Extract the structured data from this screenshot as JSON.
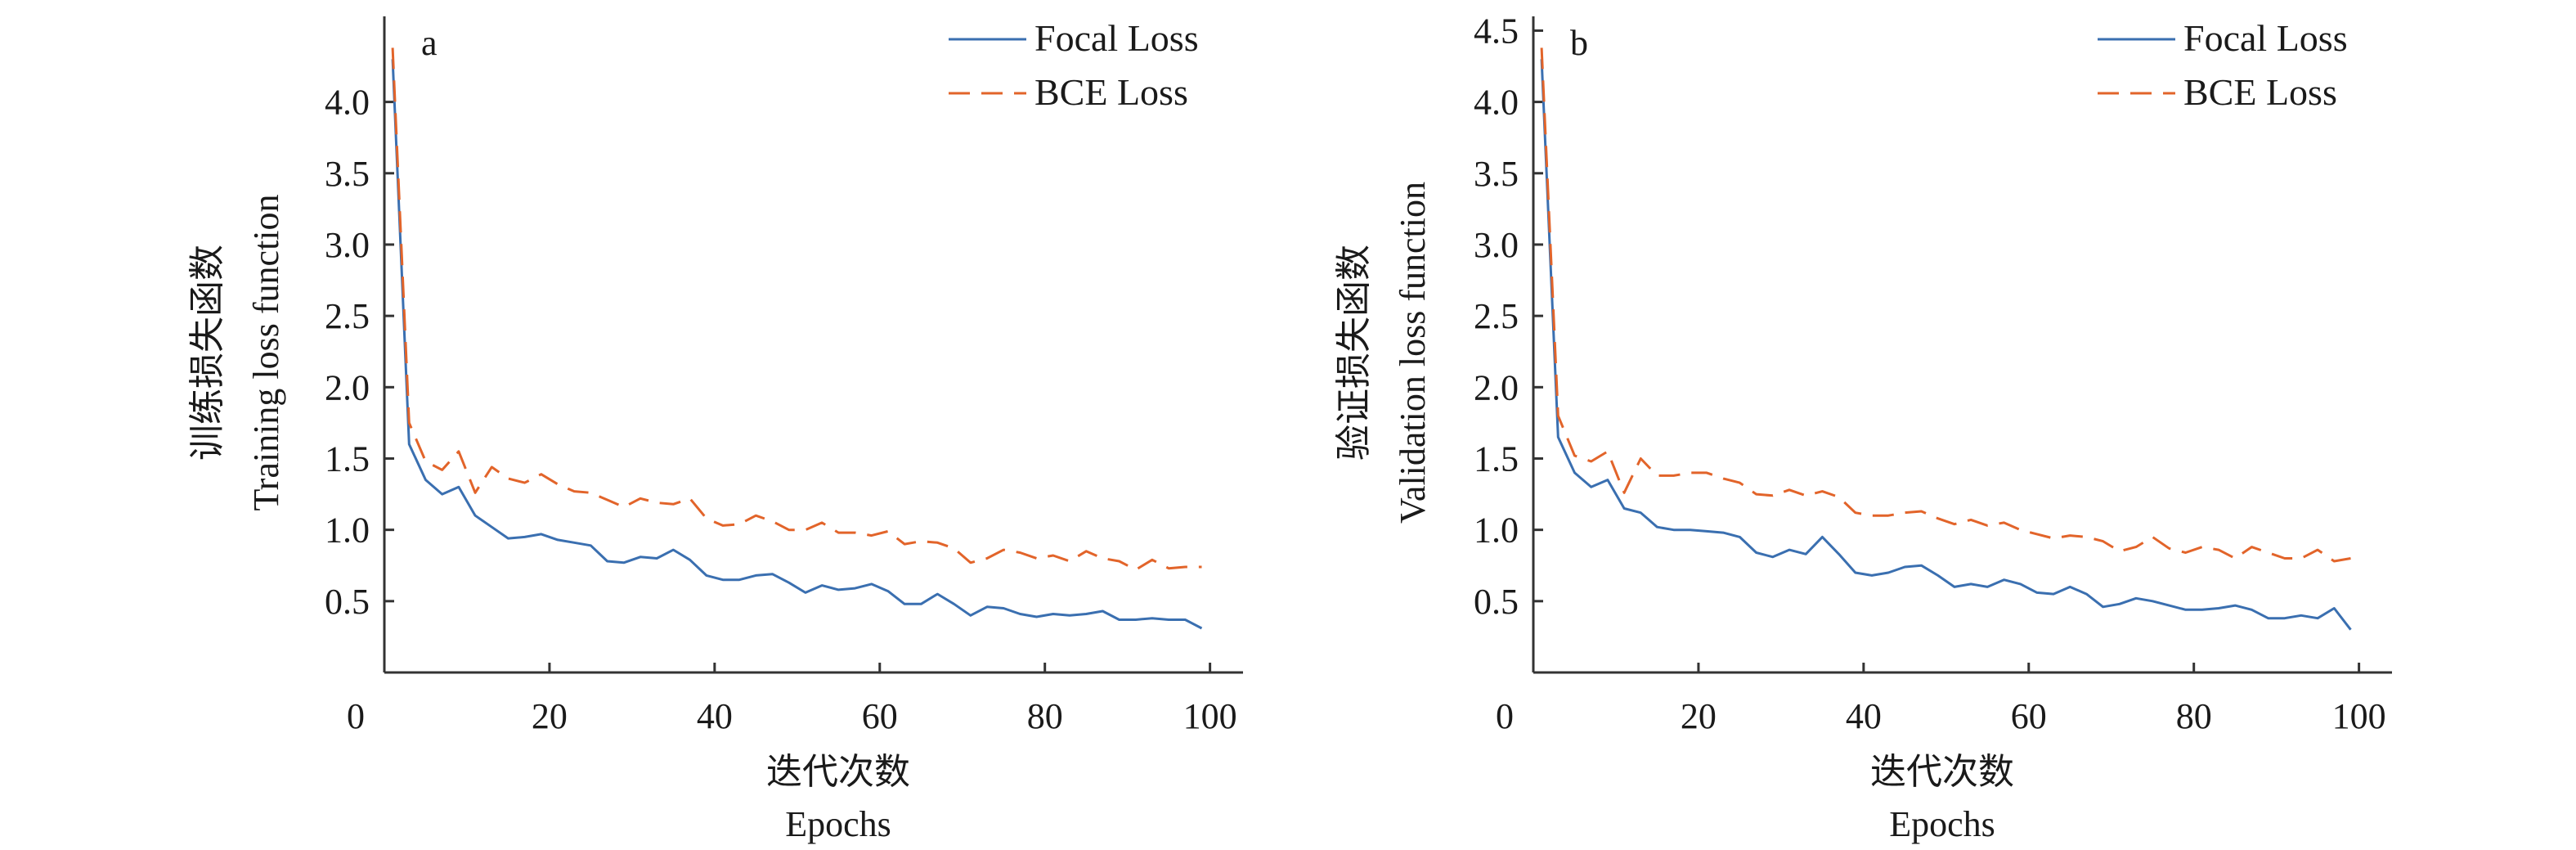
{
  "chart_data": [
    {
      "type": "line",
      "panel_label": "a",
      "xlabel_cn": "迭代次数",
      "xlabel_en": "Epochs",
      "ylabel_cn": "训练损失函数",
      "ylabel_en": "Training loss function",
      "xlim": [
        0,
        104
      ],
      "ylim": [
        0,
        4.6
      ],
      "xticks": [
        0,
        20,
        40,
        60,
        80,
        100
      ],
      "yticks": [
        0.5,
        1.0,
        1.5,
        2.0,
        2.5,
        3.0,
        3.5,
        4.0
      ],
      "ytick_labels": [
        "0.5",
        "1.0",
        "1.5",
        "2.0",
        "2.5",
        "3.0",
        "3.5",
        "4.0"
      ],
      "legend_position": "top-right",
      "series": [
        {
          "name": "Focal Loss",
          "style": "solid",
          "color": "#3a6fb0",
          "x": [
            1,
            3,
            5,
            7,
            9,
            11,
            13,
            15,
            17,
            19,
            21,
            23,
            25,
            27,
            29,
            31,
            33,
            35,
            37,
            39,
            41,
            43,
            45,
            47,
            49,
            51,
            53,
            55,
            57,
            59,
            61,
            63,
            65,
            67,
            69,
            71,
            73,
            75,
            77,
            79,
            81,
            83,
            85,
            87,
            89,
            91,
            93,
            95,
            97,
            99
          ],
          "y": [
            4.3,
            1.6,
            1.35,
            1.25,
            1.3,
            1.1,
            1.02,
            0.94,
            0.95,
            0.97,
            0.93,
            0.91,
            0.89,
            0.78,
            0.77,
            0.81,
            0.8,
            0.86,
            0.79,
            0.68,
            0.65,
            0.65,
            0.68,
            0.69,
            0.63,
            0.56,
            0.61,
            0.58,
            0.59,
            0.62,
            0.57,
            0.48,
            0.48,
            0.55,
            0.48,
            0.4,
            0.46,
            0.45,
            0.41,
            0.39,
            0.41,
            0.4,
            0.41,
            0.43,
            0.37,
            0.37,
            0.38,
            0.37,
            0.37,
            0.31
          ]
        },
        {
          "name": "BCE Loss",
          "style": "dashed",
          "color": "#e2642a",
          "x": [
            1,
            3,
            5,
            7,
            9,
            11,
            13,
            15,
            17,
            19,
            21,
            23,
            25,
            27,
            29,
            31,
            33,
            35,
            37,
            39,
            41,
            43,
            45,
            47,
            49,
            51,
            53,
            55,
            57,
            59,
            61,
            63,
            65,
            67,
            69,
            71,
            73,
            75,
            77,
            79,
            81,
            83,
            85,
            87,
            89,
            91,
            93,
            95,
            97,
            99
          ],
          "y": [
            4.38,
            1.75,
            1.48,
            1.42,
            1.55,
            1.26,
            1.44,
            1.36,
            1.33,
            1.39,
            1.32,
            1.27,
            1.26,
            1.21,
            1.16,
            1.22,
            1.19,
            1.18,
            1.22,
            1.08,
            1.03,
            1.04,
            1.1,
            1.06,
            1.0,
            1.0,
            1.05,
            0.98,
            0.98,
            0.96,
            0.99,
            0.9,
            0.92,
            0.91,
            0.87,
            0.77,
            0.8,
            0.86,
            0.84,
            0.8,
            0.82,
            0.78,
            0.85,
            0.8,
            0.78,
            0.72,
            0.79,
            0.73,
            0.74,
            0.74
          ]
        }
      ]
    },
    {
      "type": "line",
      "panel_label": "b",
      "xlabel_cn": "迭代次数",
      "xlabel_en": "Epochs",
      "ylabel_cn": "验证损失函数",
      "ylabel_en": "Validation loss function",
      "xlim": [
        0,
        104
      ],
      "ylim": [
        0,
        4.6
      ],
      "xticks": [
        0,
        20,
        40,
        60,
        80,
        100
      ],
      "yticks": [
        0.5,
        1.0,
        1.5,
        2.0,
        2.5,
        3.0,
        3.5,
        4.0,
        4.5
      ],
      "ytick_labels": [
        "0.5",
        "1.0",
        "1.5",
        "2.0",
        "2.5",
        "3.0",
        "3.5",
        "4.0",
        "4.5"
      ],
      "legend_position": "top-right",
      "series": [
        {
          "name": "Focal Loss",
          "style": "solid",
          "color": "#3a6fb0",
          "x": [
            1,
            3,
            5,
            7,
            9,
            11,
            13,
            15,
            17,
            19,
            21,
            23,
            25,
            27,
            29,
            31,
            33,
            35,
            37,
            39,
            41,
            43,
            45,
            47,
            49,
            51,
            53,
            55,
            57,
            59,
            61,
            63,
            65,
            67,
            69,
            71,
            73,
            75,
            77,
            79,
            81,
            83,
            85,
            87,
            89,
            91,
            93,
            95,
            97,
            99
          ],
          "y": [
            4.3,
            1.65,
            1.4,
            1.3,
            1.35,
            1.15,
            1.12,
            1.02,
            1.0,
            1.0,
            0.99,
            0.98,
            0.95,
            0.84,
            0.81,
            0.86,
            0.83,
            0.95,
            0.83,
            0.7,
            0.68,
            0.7,
            0.74,
            0.75,
            0.68,
            0.6,
            0.62,
            0.6,
            0.65,
            0.62,
            0.56,
            0.55,
            0.6,
            0.55,
            0.46,
            0.48,
            0.52,
            0.5,
            0.47,
            0.44,
            0.44,
            0.45,
            0.47,
            0.44,
            0.38,
            0.38,
            0.4,
            0.38,
            0.45,
            0.3
          ]
        },
        {
          "name": "BCE Loss",
          "style": "dashed",
          "color": "#e2642a",
          "x": [
            1,
            3,
            5,
            7,
            9,
            11,
            13,
            15,
            17,
            19,
            21,
            23,
            25,
            27,
            29,
            31,
            33,
            35,
            37,
            39,
            41,
            43,
            45,
            47,
            49,
            51,
            53,
            55,
            57,
            59,
            61,
            63,
            65,
            67,
            69,
            71,
            73,
            75,
            77,
            79,
            81,
            83,
            85,
            87,
            89,
            91,
            93,
            95,
            97,
            99
          ],
          "y": [
            4.38,
            1.8,
            1.52,
            1.48,
            1.55,
            1.26,
            1.5,
            1.38,
            1.38,
            1.4,
            1.4,
            1.36,
            1.33,
            1.25,
            1.24,
            1.28,
            1.24,
            1.27,
            1.23,
            1.12,
            1.1,
            1.1,
            1.12,
            1.13,
            1.08,
            1.04,
            1.07,
            1.03,
            1.05,
            1.0,
            0.97,
            0.94,
            0.96,
            0.95,
            0.92,
            0.85,
            0.88,
            0.95,
            0.87,
            0.84,
            0.88,
            0.86,
            0.8,
            0.88,
            0.84,
            0.8,
            0.8,
            0.86,
            0.78,
            0.8
          ]
        }
      ]
    }
  ]
}
